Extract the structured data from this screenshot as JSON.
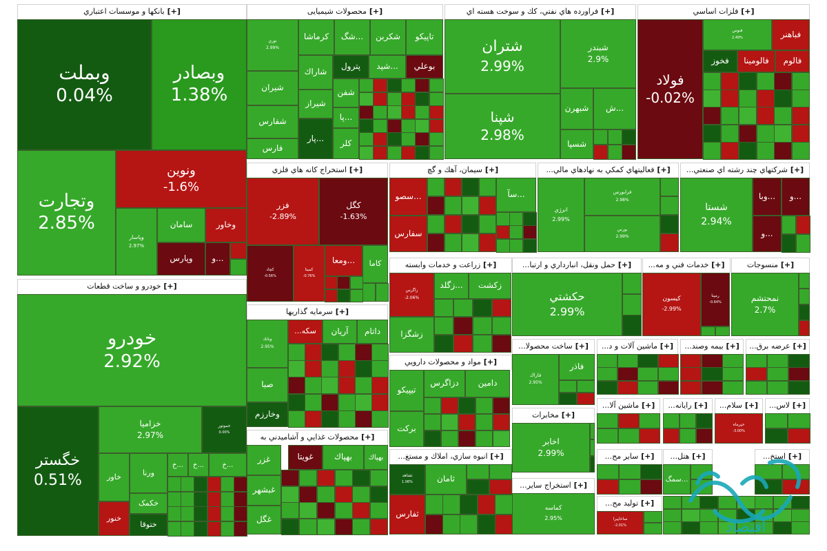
{
  "chart_data": {
    "type": "treemap",
    "colors": {
      "strong_green": "#2a9a1f",
      "green": "#36a92a",
      "light_green": "#40b332",
      "dark_green": "#145b12",
      "red": "#b51513",
      "dark_red": "#6b0a10",
      "header_bg": "#ffffff",
      "watermark": "#19a8b8"
    },
    "plus_label": "[+]",
    "sectors": [
      {
        "name": "بانکها و موسسات اعتباري",
        "stocks": [
          {
            "name": "وبملت",
            "change": "0.04%"
          },
          {
            "name": "وبصادر",
            "change": "1.38%"
          },
          {
            "name": "وتجارت",
            "change": "2.85%"
          },
          {
            "name": "ونوین",
            "change": "-1.6%"
          },
          {
            "name": "وپاسار",
            "change": "2.97%"
          },
          {
            "name": "سامان",
            "change": ""
          },
          {
            "name": "وخاور",
            "change": ""
          },
          {
            "name": "وپارس",
            "change": ""
          },
          {
            "name": "و...",
            "change": ""
          }
        ]
      },
      {
        "name": "خودرو و ساخت قطعات",
        "stocks": [
          {
            "name": "خودرو",
            "change": "2.92%"
          },
          {
            "name": "خگستر",
            "change": "0.51%"
          },
          {
            "name": "خزامیا",
            "change": "2.97%"
          },
          {
            "name": "خموتور",
            "change": "0.00%"
          },
          {
            "name": "خاور",
            "change": ""
          },
          {
            "name": "ورنا",
            "change": ""
          },
          {
            "name": "خکمک",
            "change": ""
          },
          {
            "name": "خنور",
            "change": ""
          },
          {
            "name": "ختوقا",
            "change": ""
          },
          {
            "name": "خ...",
            "change": ""
          }
        ]
      },
      {
        "name": "محصولات شیمیایی",
        "stocks": [
          {
            "name": "نوري",
            "change": "2.99%"
          },
          {
            "name": "کرماشا",
            "change": ""
          },
          {
            "name": "شگ...",
            "change": ""
          },
          {
            "name": "شکربن",
            "change": ""
          },
          {
            "name": "تاپیکو",
            "change": ""
          },
          {
            "name": "شاراك",
            "change": ""
          },
          {
            "name": "پترول",
            "change": ""
          },
          {
            "name": "شپد...",
            "change": ""
          },
          {
            "name": "بوعلي",
            "change": ""
          },
          {
            "name": "شیران",
            "change": ""
          },
          {
            "name": "شیراز",
            "change": ""
          },
          {
            "name": "شفن",
            "change": ""
          },
          {
            "name": "شفارس",
            "change": ""
          },
          {
            "name": "پا...",
            "change": ""
          },
          {
            "name": "فارس",
            "change": ""
          },
          {
            "name": "پار...",
            "change": ""
          },
          {
            "name": "کلر",
            "change": ""
          }
        ]
      },
      {
        "name": "فراورده هاي نفتي، كك و سوخت هسته اي",
        "stocks": [
          {
            "name": "شتران",
            "change": "2.99%"
          },
          {
            "name": "شبندر",
            "change": "2.9%"
          },
          {
            "name": "شپنا",
            "change": "2.98%"
          },
          {
            "name": "شبهرن",
            "change": ""
          },
          {
            "name": "ش...",
            "change": ""
          },
          {
            "name": "شسپا",
            "change": ""
          }
        ]
      },
      {
        "name": "فلزات اساسي",
        "stocks": [
          {
            "name": "فولاد",
            "change": "-0.02%"
          },
          {
            "name": "فباهنر",
            "change": ""
          },
          {
            "name": "فنوس",
            "change": "2.49%"
          },
          {
            "name": "فخوز",
            "change": ""
          },
          {
            "name": "فالومینا",
            "change": ""
          },
          {
            "name": "فالوم",
            "change": ""
          }
        ]
      },
      {
        "name": "استخراج كانه هاي فلزي",
        "stocks": [
          {
            "name": "فزر",
            "change": "-2.89%"
          },
          {
            "name": "كگل",
            "change": "-1.63%"
          },
          {
            "name": "کچاد",
            "change": "-0.56%"
          },
          {
            "name": "كميتا",
            "change": "-0.76%"
          },
          {
            "name": "ومعا...",
            "change": ""
          },
          {
            "name": "كاما",
            "change": ""
          }
        ]
      },
      {
        "name": "سيمان، آهك و گچ",
        "stocks": [
          {
            "name": "سصو...",
            "change": ""
          },
          {
            "name": "سفارس",
            "change": ""
          },
          {
            "name": "سآ...",
            "change": ""
          }
        ]
      },
      {
        "name": "...فعاليتهاي كمكي به نهادهاي مالي",
        "stocks": [
          {
            "name": "انرژي",
            "change": "2.99%"
          },
          {
            "name": "فرابورس",
            "change": "2.98%"
          },
          {
            "name": "بورس",
            "change": "2.99%"
          }
        ]
      },
      {
        "name": "...شركتهاي چند رشته اي صنعتي",
        "stocks": [
          {
            "name": "شستا",
            "change": "2.94%"
          },
          {
            "name": "وبا...",
            "change": ""
          },
          {
            "name": "و...",
            "change": ""
          }
        ]
      },
      {
        "name": "سرمايه گذاريها",
        "stocks": [
          {
            "name": "وبانك",
            "change": "2.95%"
          },
          {
            "name": "...سكه",
            "change": ""
          },
          {
            "name": "آريان",
            "change": ""
          },
          {
            "name": "داتام",
            "change": ""
          },
          {
            "name": "صبا",
            "change": ""
          },
          {
            "name": "وخارزم",
            "change": ""
          }
        ]
      },
      {
        "name": "زراعت و خدمات وابسته",
        "stocks": [
          {
            "name": "زكشت",
            "change": ""
          },
          {
            "name": "زگلد...",
            "change": ""
          },
          {
            "name": "زشگزا",
            "change": ""
          },
          {
            "name": "زاگرس",
            "change": "-2.06%"
          }
        ]
      },
      {
        "name": "...حمل ونقل، انبارداري و ارتبا",
        "stocks": [
          {
            "name": "حكشتي",
            "change": "2.99%"
          }
        ]
      },
      {
        "name": "...خدمات فني و مه",
        "stocks": [
          {
            "name": "كيسون",
            "change": "-2.99%"
          },
          {
            "name": "رمپنا",
            "change": "-0.64%"
          }
        ]
      },
      {
        "name": "منسوجات",
        "stocks": [
          {
            "name": "نمحتشم",
            "change": "2.7%"
          }
        ]
      },
      {
        "name": "مواد و محصولات دارويي",
        "stocks": [
          {
            "name": "دزاگرس",
            "change": ""
          },
          {
            "name": "دامين",
            "change": ""
          },
          {
            "name": "تيپيكو",
            "change": ""
          },
          {
            "name": "بركت",
            "change": ""
          }
        ]
      },
      {
        "name": "...ساخت محصولا",
        "stocks": [
          {
            "name": "فاذر",
            "change": ""
          },
          {
            "name": "فاراك",
            "change": "2.95%"
          }
        ]
      },
      {
        "name": "مخابرات",
        "stocks": [
          {
            "name": "اخابر",
            "change": "2.99%"
          }
        ]
      },
      {
        "name": "محصولات غذايي و آشاميدني به",
        "stocks": [
          {
            "name": "غزر",
            "change": ""
          },
          {
            "name": "غويتا",
            "change": ""
          },
          {
            "name": "بهپاك",
            "change": ""
          },
          {
            "name": "غبشهر",
            "change": ""
          },
          {
            "name": "غگل",
            "change": ""
          }
        ]
      },
      {
        "name": "...انبوه سازي، املاك و مستغ",
        "stocks": [
          {
            "name": "ثامان",
            "change": ""
          },
          {
            "name": "ثفارس",
            "change": ""
          },
          {
            "name": "ثشاهد",
            "change": "1.06%"
          }
        ]
      },
      {
        "name": "...استخراج ساير",
        "stocks": [
          {
            "name": "كماسه",
            "change": "2.95%"
          }
        ]
      },
      {
        "name": "...ماشين آلات و د",
        "stocks": []
      },
      {
        "name": "...بيمه وصند",
        "stocks": []
      },
      {
        "name": "...عرضه برق",
        "stocks": []
      },
      {
        "name": "...ماشين آلا",
        "stocks": []
      },
      {
        "name": "...رايانه",
        "stocks": []
      },
      {
        "name": "...سلام",
        "stocks": [
          {
            "name": "حپرماه",
            "change": "-3.00%"
          }
        ]
      },
      {
        "name": "...لاس",
        "stocks": []
      },
      {
        "name": "...ساير مح",
        "stocks": []
      },
      {
        "name": "...هتل",
        "stocks": [
          {
            "name": "سمگ...",
            "change": ""
          }
        ]
      },
      {
        "name": "...استخ",
        "stocks": []
      },
      {
        "name": "...توليد مح",
        "stocks": [
          {
            "name": "ساخاپيرا",
            "change": "-2.01%"
          }
        ]
      }
    ],
    "watermark_text": "اقتصاد"
  }
}
